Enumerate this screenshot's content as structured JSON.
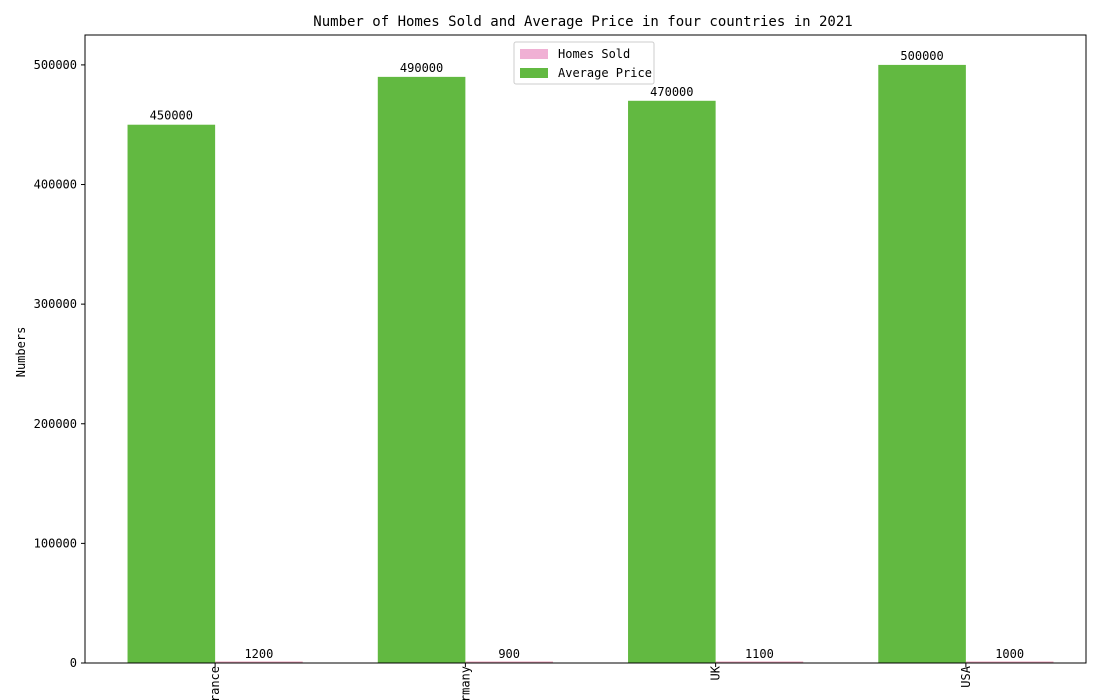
{
  "chart_data": {
    "type": "bar",
    "title": "Number of Homes Sold and Average Price in four countries in 2021",
    "xlabel": "",
    "ylabel": "Numbers",
    "categories": [
      "France",
      "Germany",
      "UK",
      "USA"
    ],
    "series": [
      {
        "name": "Homes Sold",
        "values": [
          1200,
          900,
          1100,
          1000
        ],
        "color": "#f0b0d4"
      },
      {
        "name": "Average Price",
        "values": [
          450000,
          490000,
          470000,
          500000
        ],
        "color": "#62b941"
      }
    ],
    "ylim": [
      0,
      525000
    ],
    "yticks": [
      0,
      100000,
      200000,
      300000,
      400000,
      500000
    ],
    "legend": "top-center",
    "grid": false
  }
}
